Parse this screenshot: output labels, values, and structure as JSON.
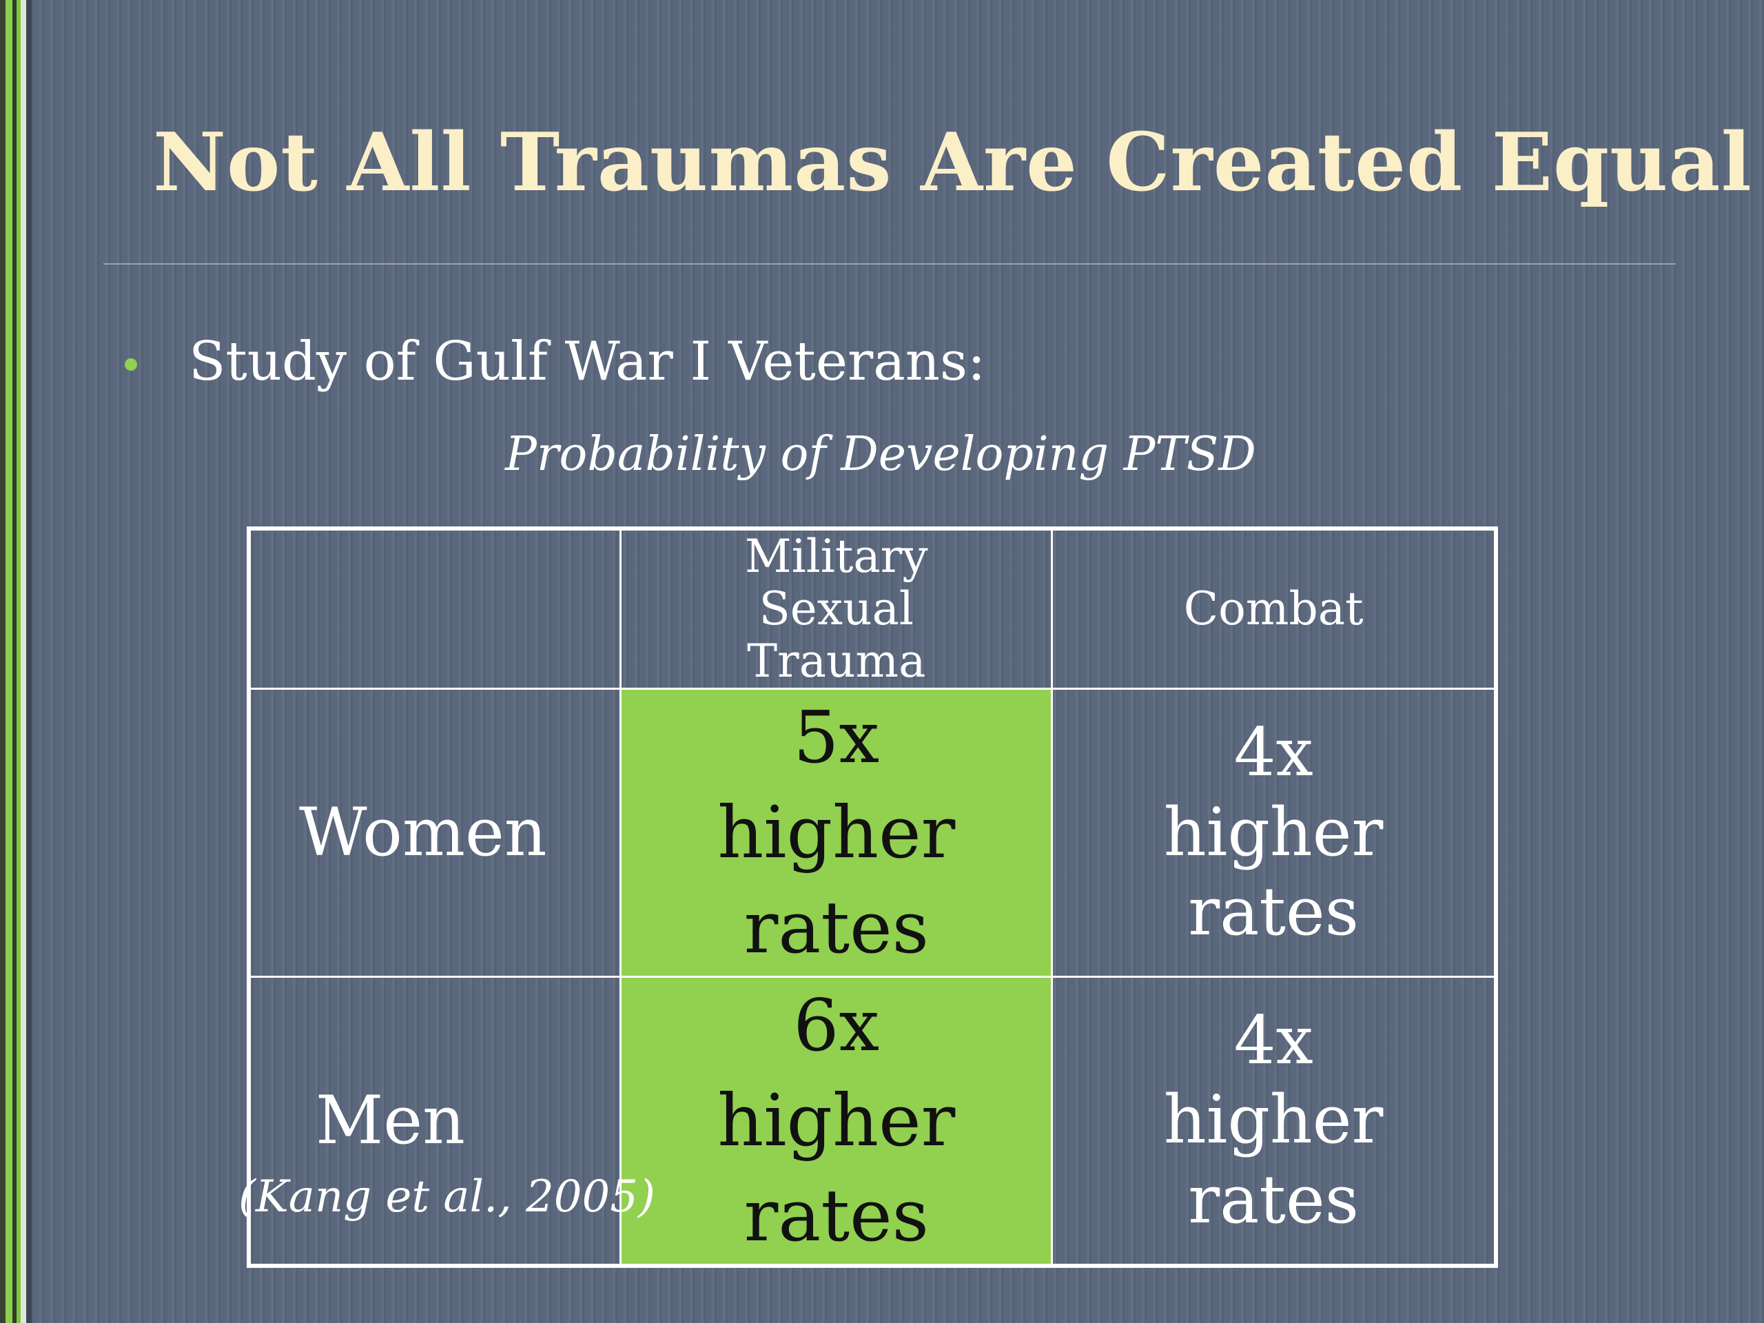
{
  "slide": {
    "title": "Not All Traumas Are Created Equal",
    "bullet": "Study of Gulf War I Veterans:",
    "caption": "Probability of Developing PTSD",
    "source": "(Kang et al., 2005)",
    "colors": {
      "background": "#5a677c",
      "title": "#fbefc8",
      "highlight": "#92d050",
      "bullet": "#92d050"
    }
  },
  "table": {
    "headers": [
      "",
      "Military Sexual Trauma",
      "Combat"
    ],
    "rows": [
      {
        "label": "Women",
        "military_sexual_trauma": "5x higher rates",
        "combat": "4x higher rates"
      },
      {
        "label": "Men",
        "military_sexual_trauma": "6x higher rates",
        "combat": "4x higher rates"
      }
    ]
  }
}
